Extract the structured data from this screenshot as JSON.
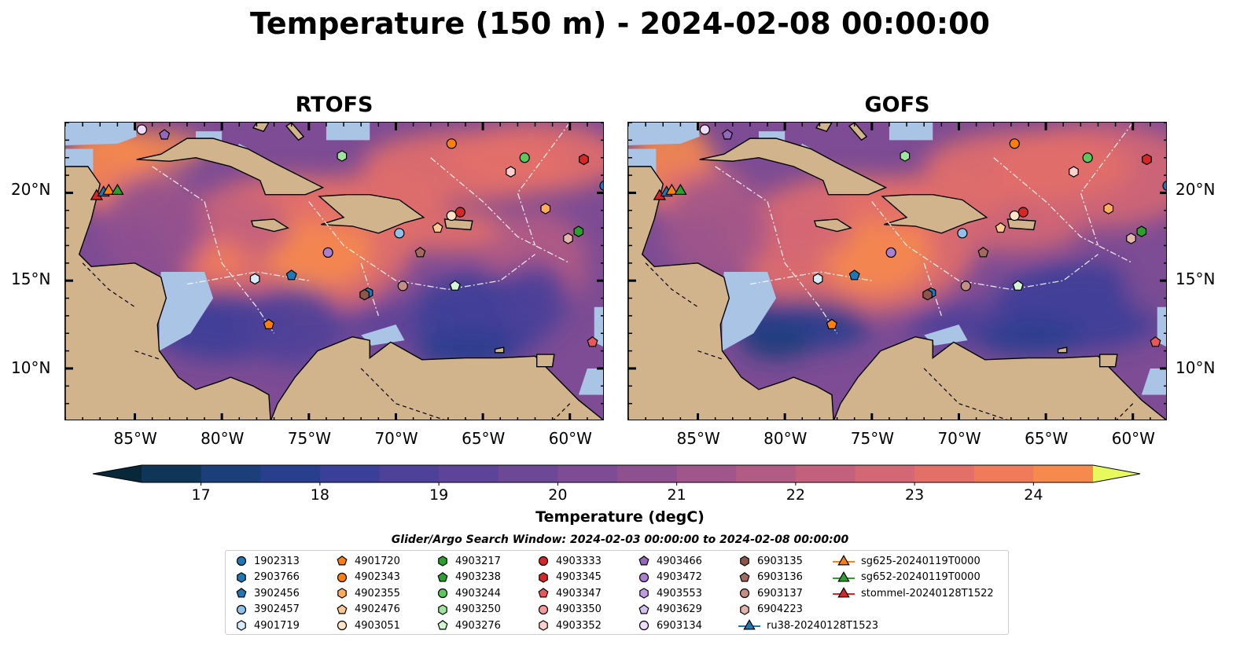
{
  "title": "Temperature (150 m) - 2024-02-08 00:00:00",
  "panels": [
    {
      "title": "RTOFS"
    },
    {
      "title": "GOFS"
    }
  ],
  "lat_ticks": [
    "20°N",
    "15°N",
    "10°N"
  ],
  "lon_ticks": [
    "85°W",
    "80°W",
    "75°W",
    "70°W",
    "65°W",
    "60°W"
  ],
  "colorbar": {
    "label": "Temperature (degC)",
    "ticks": [
      "17",
      "18",
      "19",
      "20",
      "21",
      "22",
      "23",
      "24"
    ],
    "range": [
      16.5,
      24.5
    ],
    "step": 0.5,
    "colors": [
      "#08283a",
      "#0f3557",
      "#1c3f7a",
      "#283f8e",
      "#3a3f98",
      "#4d4199",
      "#5d4498",
      "#6d4896",
      "#7d4c94",
      "#8f5090",
      "#a0558b",
      "#b25b84",
      "#c3607d",
      "#d46774",
      "#e36f69",
      "#ef7b5b",
      "#f68a4d",
      "#fa9a42",
      "#fcac3b",
      "#fbbe3c",
      "#f8d344",
      "#f2e84f",
      "#e8fa5b"
    ]
  },
  "search_window": "Glider/Argo Search Window: 2024-02-03 00:00:00 to 2024-02-08 00:00:00",
  "legend": [
    {
      "label": "1902313",
      "marker": "circle",
      "color": "#1f77b4"
    },
    {
      "label": "2903766",
      "marker": "hexagon",
      "color": "#1f77b4"
    },
    {
      "label": "3902456",
      "marker": "pentagon",
      "color": "#1f77b4"
    },
    {
      "label": "3902457",
      "marker": "circle",
      "color": "#8fc1e9"
    },
    {
      "label": "4901719",
      "marker": "hexagon",
      "color": "#d6ecfb"
    },
    {
      "label": "4901720",
      "marker": "pentagon",
      "color": "#ff7f0e"
    },
    {
      "label": "4902343",
      "marker": "circle",
      "color": "#ff7f0e"
    },
    {
      "label": "4902355",
      "marker": "hexagon",
      "color": "#ffad5a"
    },
    {
      "label": "4902476",
      "marker": "pentagon",
      "color": "#ffc891"
    },
    {
      "label": "4903051",
      "marker": "circle",
      "color": "#ffe4c6"
    },
    {
      "label": "4903217",
      "marker": "hexagon",
      "color": "#2ca02c"
    },
    {
      "label": "4903238",
      "marker": "pentagon",
      "color": "#2ca02c"
    },
    {
      "label": "4903244",
      "marker": "circle",
      "color": "#5cc85c"
    },
    {
      "label": "4903250",
      "marker": "hexagon",
      "color": "#9ee49e"
    },
    {
      "label": "4903276",
      "marker": "pentagon",
      "color": "#d3f7d3"
    },
    {
      "label": "4903333",
      "marker": "circle",
      "color": "#d62728"
    },
    {
      "label": "4903345",
      "marker": "hexagon",
      "color": "#d62728"
    },
    {
      "label": "4903347",
      "marker": "pentagon",
      "color": "#e8585a"
    },
    {
      "label": "4903350",
      "marker": "circle",
      "color": "#f49b9c"
    },
    {
      "label": "4903352",
      "marker": "hexagon",
      "color": "#fdd0d0"
    },
    {
      "label": "4903466",
      "marker": "pentagon",
      "color": "#9467bd"
    },
    {
      "label": "4903472",
      "marker": "circle",
      "color": "#a97fd0"
    },
    {
      "label": "4903553",
      "marker": "hexagon",
      "color": "#bf9ee0"
    },
    {
      "label": "4903629",
      "marker": "pentagon",
      "color": "#d6c2ef"
    },
    {
      "label": "6903134",
      "marker": "circle",
      "color": "#efdbfb"
    },
    {
      "label": "6903135",
      "marker": "hexagon",
      "color": "#8c564b"
    },
    {
      "label": "6903136",
      "marker": "pentagon",
      "color": "#a36a5f"
    },
    {
      "label": "6903137",
      "marker": "circle",
      "color": "#c48e84"
    },
    {
      "label": "6904223",
      "marker": "hexagon",
      "color": "#e2b4ab"
    },
    {
      "label": "ru38-20240128T1523",
      "marker": "triangle-line",
      "color": "#1f77b4"
    },
    {
      "label": "sg625-20240119T0000",
      "marker": "triangle-line",
      "color": "#ff7f0e"
    },
    {
      "label": "sg652-20240119T0000",
      "marker": "triangle-line",
      "color": "#2ca02c"
    },
    {
      "label": "stommel-20240128T1522",
      "marker": "triangle-line",
      "color": "#d62728"
    }
  ],
  "map_extent": {
    "lon": [
      -89,
      -58
    ],
    "lat": [
      7,
      24
    ]
  },
  "floats": [
    {
      "id": "1902313",
      "lon": -58.0,
      "lat": 20.4
    },
    {
      "id": "2903766",
      "lon": -71.6,
      "lat": 14.3
    },
    {
      "id": "3902456",
      "lon": -76.0,
      "lat": 15.3
    },
    {
      "id": "3902457",
      "lon": -69.8,
      "lat": 17.7
    },
    {
      "id": "4901719",
      "lon": -78.1,
      "lat": 15.1
    },
    {
      "id": "4901720",
      "lon": -77.3,
      "lat": 12.5
    },
    {
      "id": "4902343",
      "lon": -66.8,
      "lat": 22.8
    },
    {
      "id": "4902355",
      "lon": -61.4,
      "lat": 19.1
    },
    {
      "id": "4902476",
      "lon": -67.6,
      "lat": 18.0
    },
    {
      "id": "4903051",
      "lon": -66.8,
      "lat": 18.7
    },
    {
      "id": "4903217",
      "lon": -59.5,
      "lat": 17.8
    },
    {
      "id": "4903244",
      "lon": -62.6,
      "lat": 22.0
    },
    {
      "id": "4903250",
      "lon": -73.1,
      "lat": 22.1
    },
    {
      "id": "4903276",
      "lon": -66.6,
      "lat": 14.7
    },
    {
      "id": "4903333",
      "lon": -66.3,
      "lat": 18.9
    },
    {
      "id": "4903345",
      "lon": -59.2,
      "lat": 21.9
    },
    {
      "id": "4903347",
      "lon": -58.7,
      "lat": 11.5
    },
    {
      "id": "4903352",
      "lon": -63.4,
      "lat": 21.2
    },
    {
      "id": "4903472",
      "lon": -73.9,
      "lat": 16.6
    },
    {
      "id": "6903134",
      "lon": -84.6,
      "lat": 23.6
    },
    {
      "id": "6903135",
      "lon": -71.8,
      "lat": 14.2
    },
    {
      "id": "6903136",
      "lon": -68.6,
      "lat": 16.6
    },
    {
      "id": "6903137",
      "lon": -69.6,
      "lat": 14.7
    },
    {
      "id": "6904223",
      "lon": -60.1,
      "lat": 17.4
    },
    {
      "id": "4903466",
      "lon": -83.3,
      "lat": 23.3
    }
  ],
  "gliders": [
    {
      "id": "stommel-20240128T1522",
      "lon": -87.2,
      "lat": 19.8
    },
    {
      "id": "ru38-20240128T1523",
      "lon": -86.8,
      "lat": 20.0
    },
    {
      "id": "sg625-20240119T0000",
      "lon": -86.5,
      "lat": 20.1
    },
    {
      "id": "sg652-20240119T0000",
      "lon": -86.0,
      "lat": 20.1
    }
  ]
}
